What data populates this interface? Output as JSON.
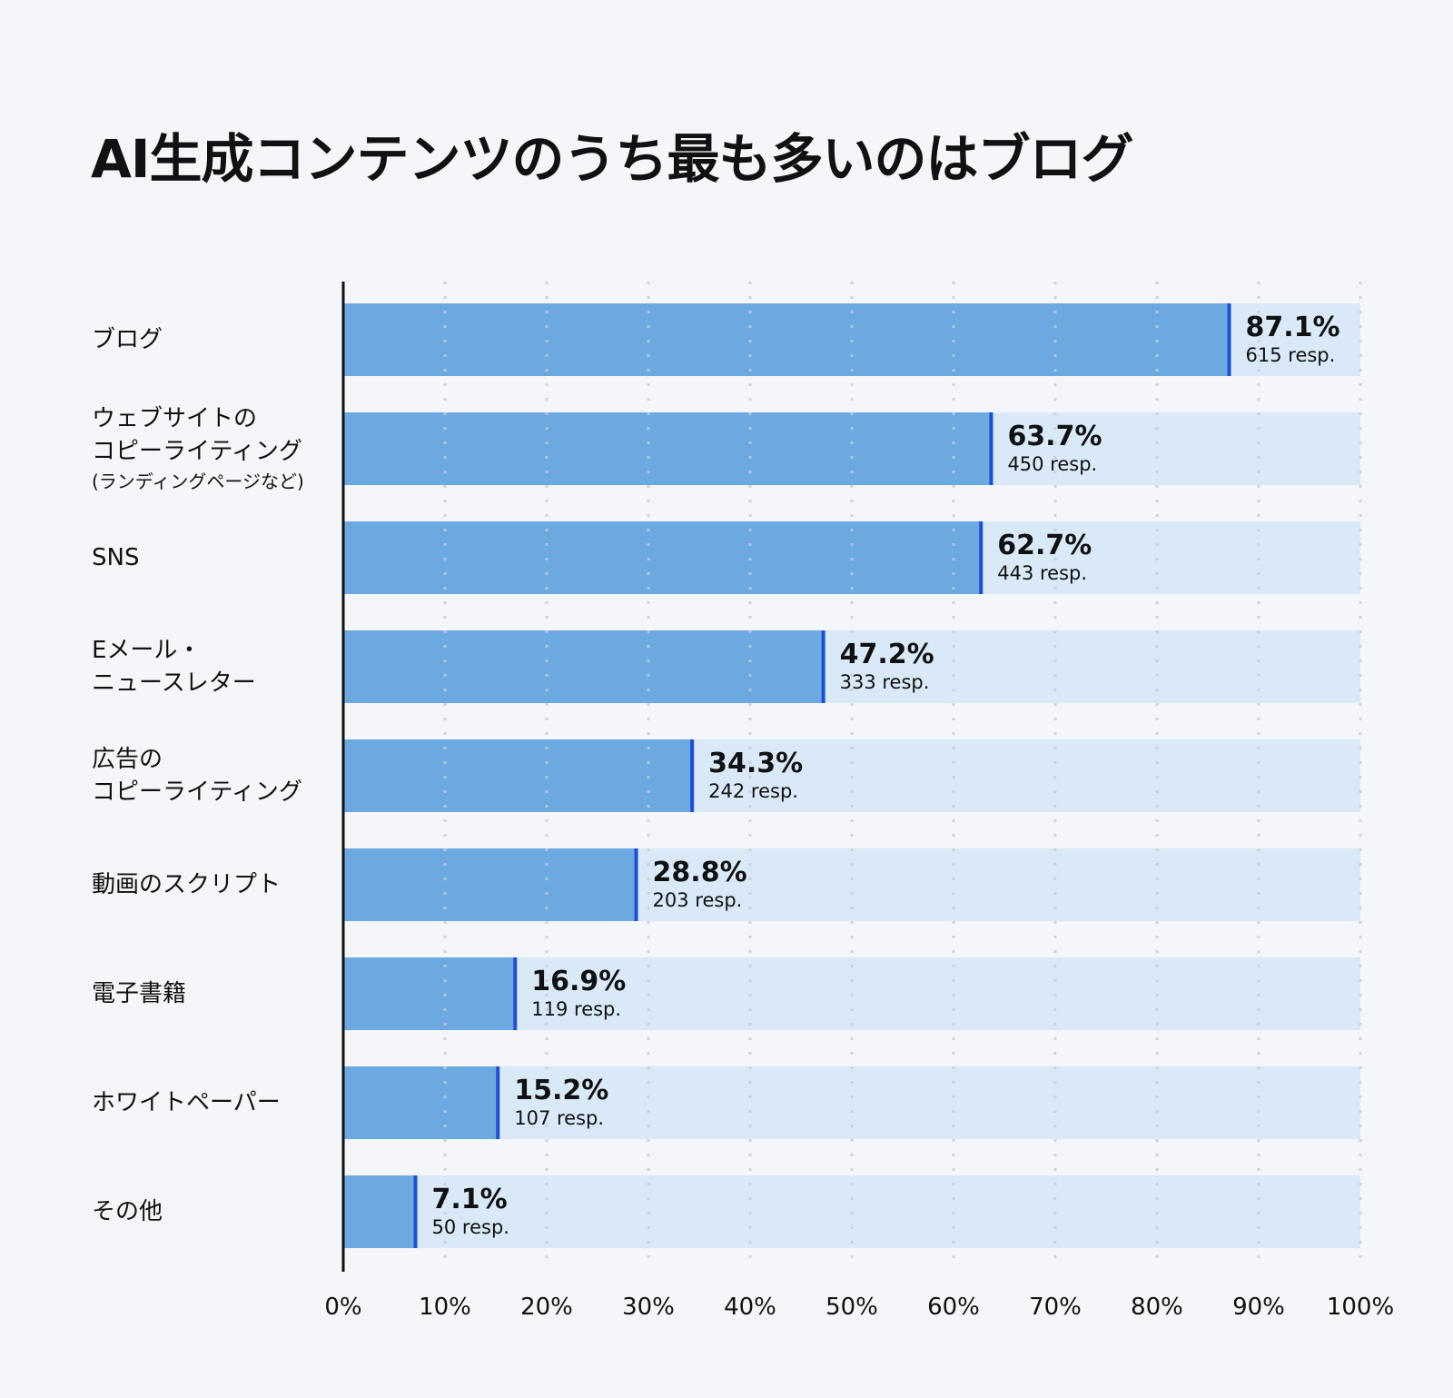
{
  "chart_data": {
    "type": "bar",
    "orientation": "horizontal",
    "title": "AI生成コンテンツのうち最も多いのはブログ",
    "categories": [
      {
        "lines": [
          "ブログ"
        ]
      },
      {
        "lines": [
          "ウェブサイトの",
          "コピーライティング"
        ],
        "sub": "(ランディングページなど)"
      },
      {
        "lines": [
          "SNS"
        ]
      },
      {
        "lines": [
          "Eメール・",
          "ニュースレター"
        ]
      },
      {
        "lines": [
          "広告の",
          "コピーライティング"
        ]
      },
      {
        "lines": [
          "動画のスクリプト"
        ]
      },
      {
        "lines": [
          "電子書籍"
        ]
      },
      {
        "lines": [
          "ホワイトペーパー"
        ]
      },
      {
        "lines": [
          "その他"
        ]
      }
    ],
    "values": [
      87.1,
      63.7,
      62.7,
      47.2,
      34.3,
      28.8,
      16.9,
      15.2,
      7.1
    ],
    "value_labels": [
      "87.1%",
      "63.7%",
      "62.7%",
      "47.2%",
      "34.3%",
      "28.8%",
      "16.9%",
      "15.2%",
      "7.1%"
    ],
    "responses": [
      "615 resp.",
      "450 resp.",
      "443 resp.",
      "333 resp.",
      "242 resp.",
      "203 resp.",
      "119 resp.",
      "107 resp.",
      "50 resp."
    ],
    "xlim": [
      0,
      100
    ],
    "x_ticks": [
      "0%",
      "10%",
      "20%",
      "30%",
      "40%",
      "50%",
      "60%",
      "70%",
      "80%",
      "90%",
      "100%"
    ],
    "grid": "vertical dotted",
    "colors": {
      "bar": "#6ca9e0",
      "track": "#d9e9f8",
      "marker": "#1a4fd6",
      "grid": "#c8ccd2",
      "axis": "#111111"
    }
  }
}
